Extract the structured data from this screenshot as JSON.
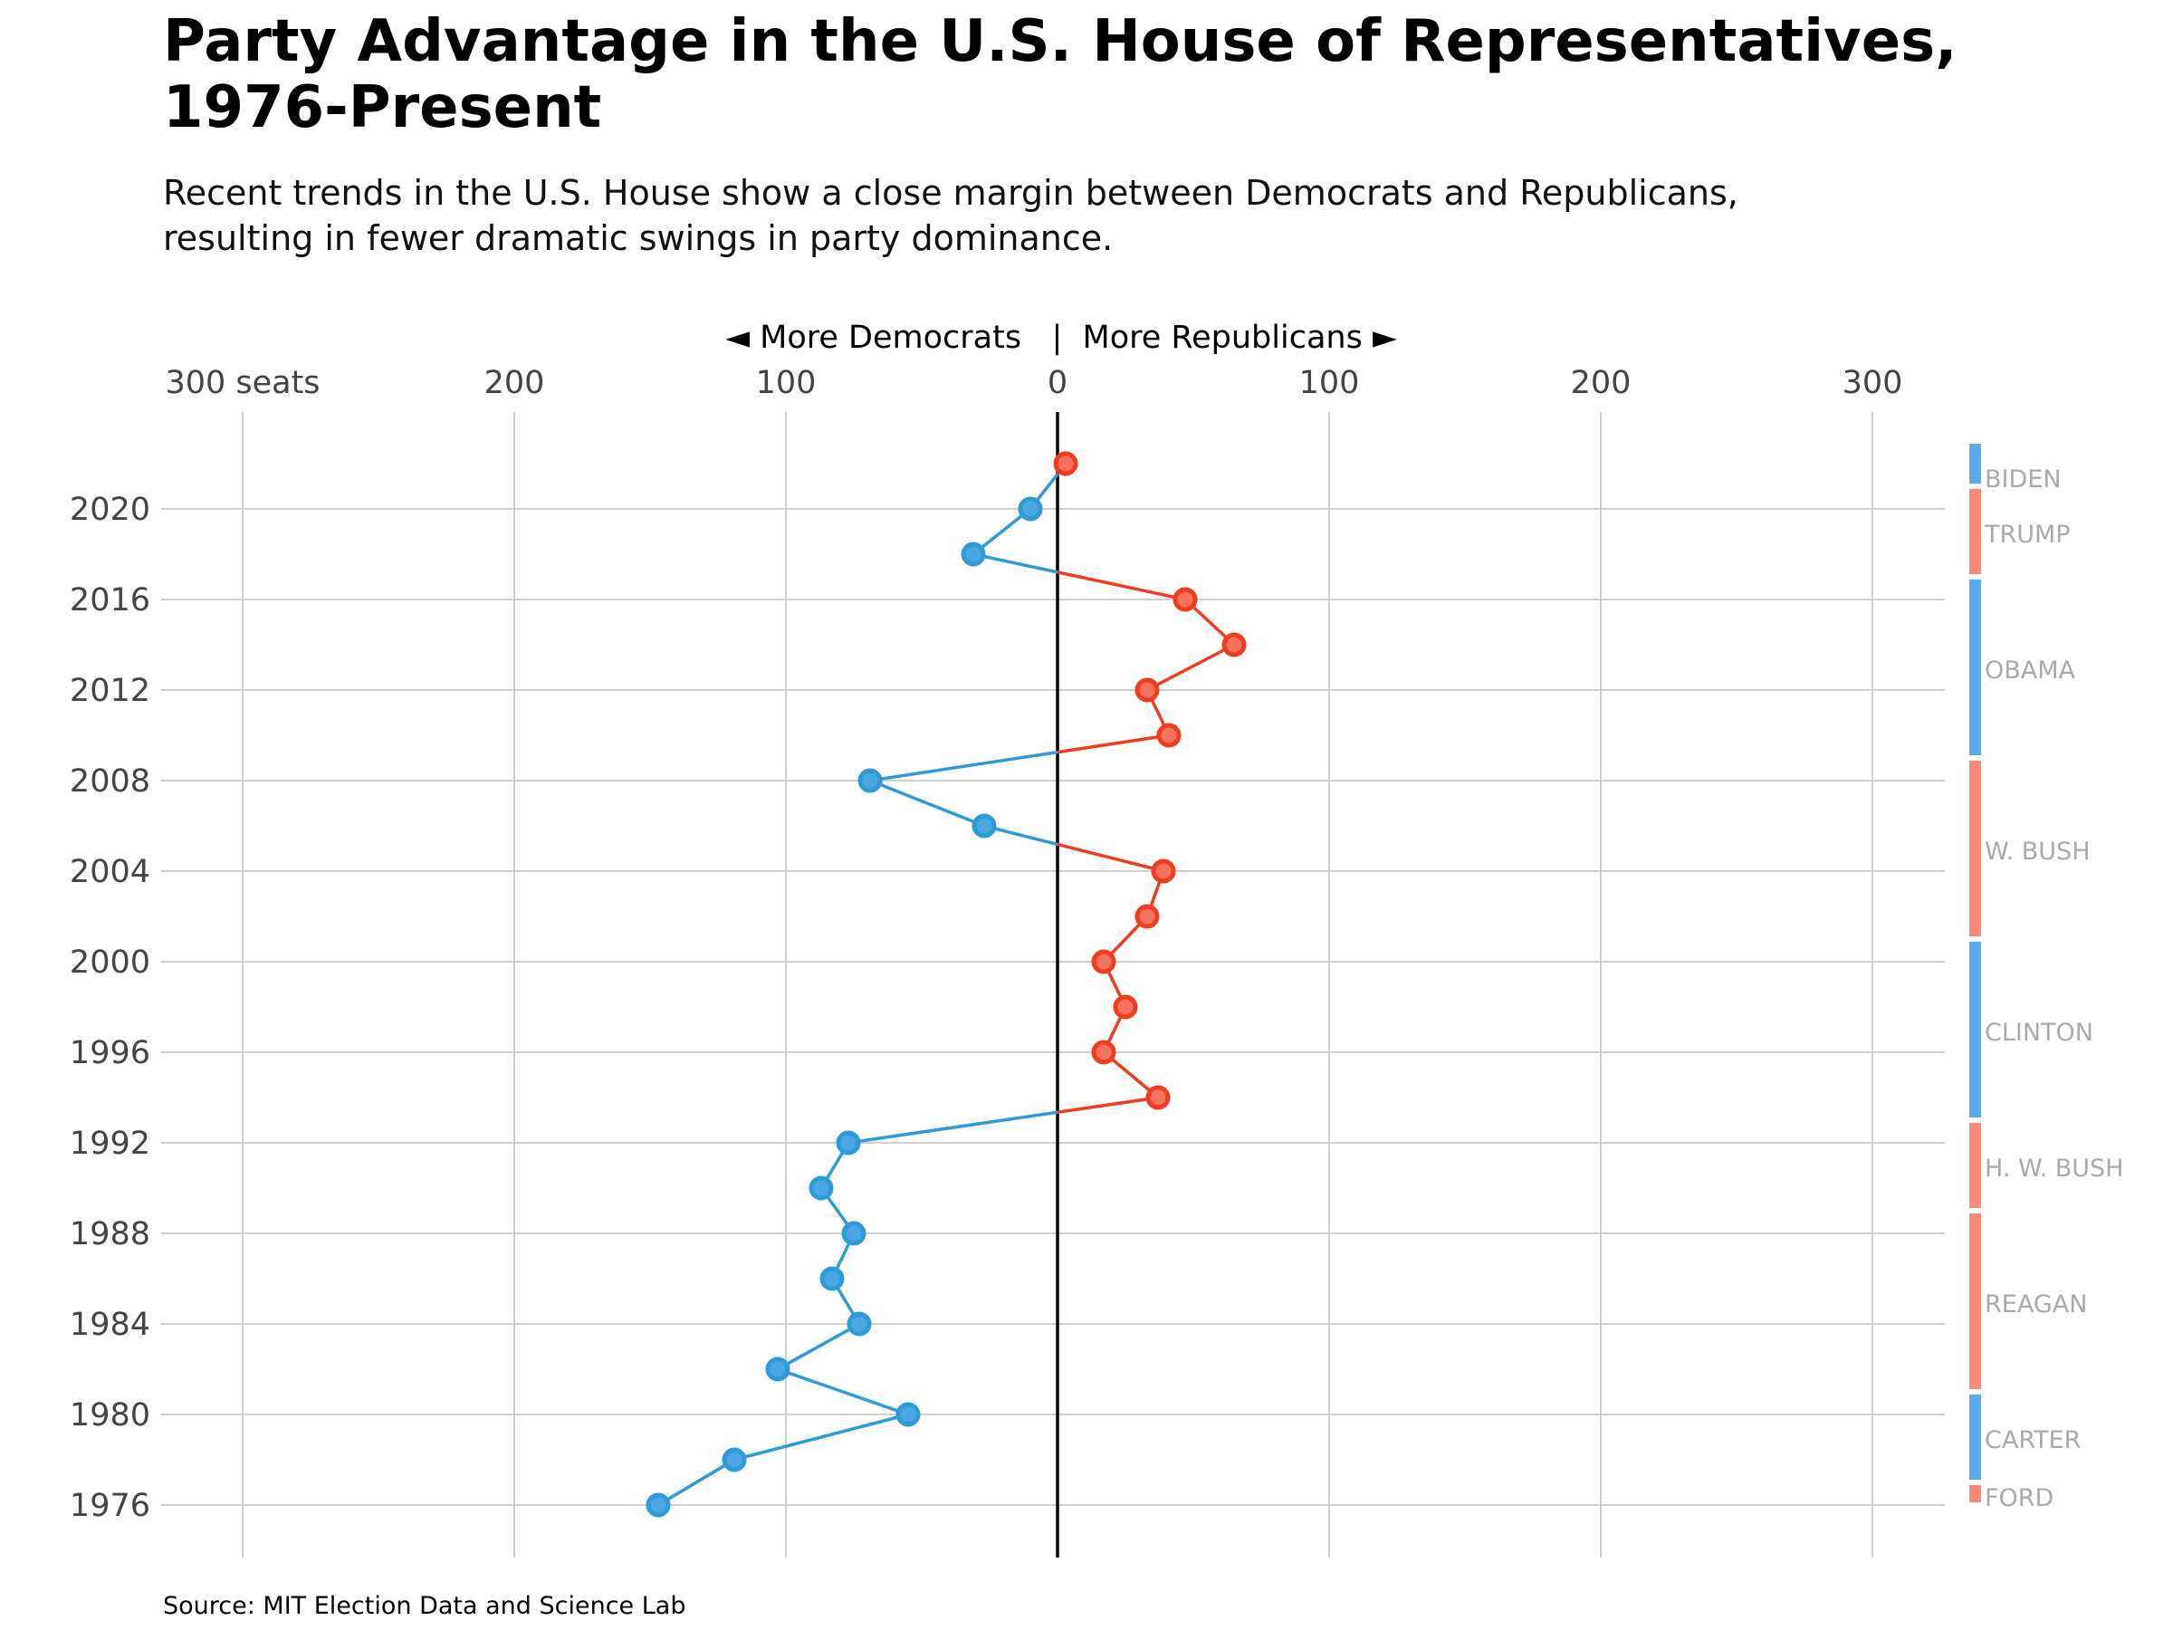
{
  "title": "Party Advantage in the U.S. House of Representatives, 1976-Present",
  "subtitle": "Recent trends in the U.S. House show a close margin between Democrats and Republicans, resulting in fewer dramatic swings in party dominance.",
  "source": "Source: MIT Election Data and Science Lab",
  "colors": {
    "democrat": "#2e9ad6",
    "democrat_fill": "#4aa6e0",
    "republican": "#f03c1f",
    "republican_fill": "#f7735e",
    "dem_bar": "#5aade8",
    "rep_bar": "#fb8a78",
    "grid": "#d0d0d0",
    "president_label": "#aaaaaa"
  },
  "chart_data": {
    "type": "line",
    "orientation": "horizontal",
    "direction_label": "◄ More Democrats   |  More Republicans ►",
    "x_unit_label": "300 seats",
    "xlim": [
      -300,
      300
    ],
    "x_ticks": [
      -300,
      -200,
      -100,
      0,
      100,
      200,
      300
    ],
    "x_tick_labels": [
      "300 seats",
      "200",
      "100",
      "0",
      "100",
      "200",
      "300"
    ],
    "y_ticks": [
      1976,
      1980,
      1984,
      1988,
      1992,
      1996,
      2000,
      2004,
      2008,
      2012,
      2016,
      2020
    ],
    "y_tick_labels": [
      "1976",
      "1980",
      "1984",
      "1988",
      "1992",
      "1996",
      "2000",
      "2004",
      "2008",
      "2012",
      "2016",
      "2020"
    ],
    "grid": true,
    "points": [
      {
        "year": 1976,
        "advantage": -147
      },
      {
        "year": 1978,
        "advantage": -119
      },
      {
        "year": 1980,
        "advantage": -55
      },
      {
        "year": 1982,
        "advantage": -103
      },
      {
        "year": 1984,
        "advantage": -73
      },
      {
        "year": 1986,
        "advantage": -83
      },
      {
        "year": 1988,
        "advantage": -75
      },
      {
        "year": 1990,
        "advantage": -87
      },
      {
        "year": 1992,
        "advantage": -77
      },
      {
        "year": 1994,
        "advantage": 37
      },
      {
        "year": 1996,
        "advantage": 17
      },
      {
        "year": 1998,
        "advantage": 25
      },
      {
        "year": 2000,
        "advantage": 17
      },
      {
        "year": 2002,
        "advantage": 33
      },
      {
        "year": 2004,
        "advantage": 39
      },
      {
        "year": 2006,
        "advantage": -27
      },
      {
        "year": 2008,
        "advantage": -69
      },
      {
        "year": 2010,
        "advantage": 41
      },
      {
        "year": 2012,
        "advantage": 33
      },
      {
        "year": 2014,
        "advantage": 65
      },
      {
        "year": 2016,
        "advantage": 47
      },
      {
        "year": 2018,
        "advantage": -31
      },
      {
        "year": 2020,
        "advantage": -10
      },
      {
        "year": 2022,
        "advantage": 3
      }
    ],
    "presidents": [
      {
        "name": "FORD",
        "party": "R",
        "start": 1976,
        "end": 1977
      },
      {
        "name": "CARTER",
        "party": "D",
        "start": 1977,
        "end": 1981
      },
      {
        "name": "REAGAN",
        "party": "R",
        "start": 1981,
        "end": 1989
      },
      {
        "name": "H. W. BUSH",
        "party": "R",
        "start": 1989,
        "end": 1993
      },
      {
        "name": "CLINTON",
        "party": "D",
        "start": 1993,
        "end": 2001
      },
      {
        "name": "W. BUSH",
        "party": "R",
        "start": 2001,
        "end": 2009
      },
      {
        "name": "OBAMA",
        "party": "D",
        "start": 2009,
        "end": 2017
      },
      {
        "name": "TRUMP",
        "party": "R",
        "start": 2017,
        "end": 2021
      },
      {
        "name": "BIDEN",
        "party": "D",
        "start": 2021,
        "end": 2023
      }
    ]
  }
}
